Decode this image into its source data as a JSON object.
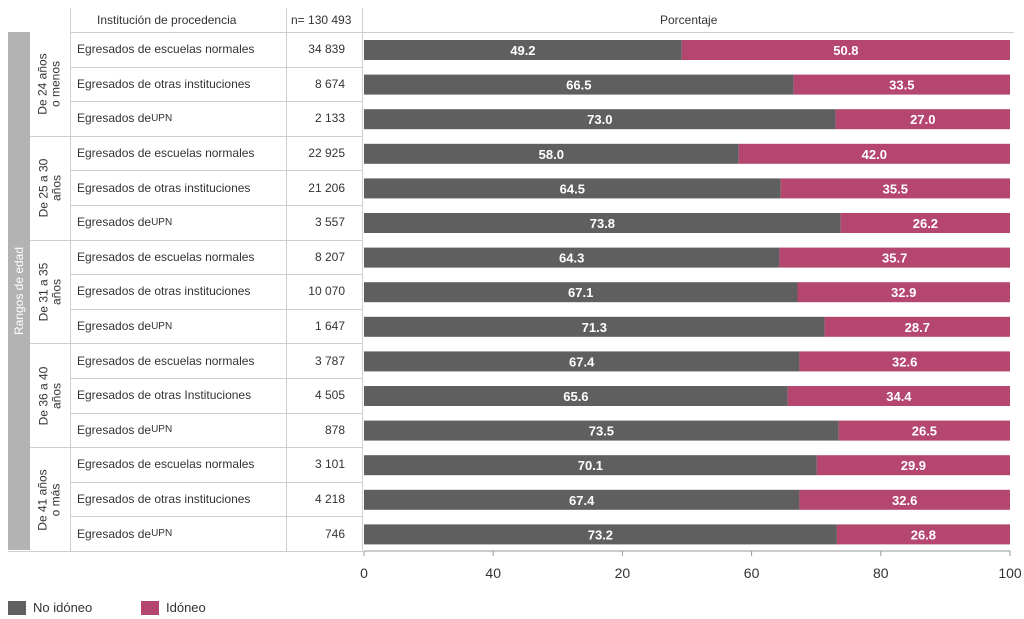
{
  "header": {
    "institution": "Institución de procedencia",
    "n_total": "n= 130 493",
    "percent": "Porcentaje"
  },
  "side_label": "Rangos de edad",
  "age_groups": [
    "De 24 años\no menos",
    "De 25 a 30\naños",
    "De 31 a 35\naños",
    "De 36 a 40\naños",
    "De 41 años\no más"
  ],
  "legend": [
    {
      "label": "No idóneo",
      "color": "#5f5f5f"
    },
    {
      "label": "Idóneo",
      "color": "#b5466f"
    }
  ],
  "chart_data": {
    "type": "bar",
    "orientation": "horizontal",
    "stacked": true,
    "xlim": [
      0,
      100
    ],
    "xticks": [
      "0",
      "40",
      "20",
      "60",
      "80",
      "100"
    ],
    "grid": false,
    "legend_position": "bottom-left",
    "rows": [
      {
        "group": "De 24 años o menos",
        "institution": "Egresados de escuelas normales",
        "n": "34 839"
      },
      {
        "group": "De 24 años o menos",
        "institution": "Egresados de otras instituciones",
        "n": "8 674"
      },
      {
        "group": "De 24 años o menos",
        "institution": "Egresados de UPN",
        "n": "2 133"
      },
      {
        "group": "De 25 a 30 años",
        "institution": "Egresados de escuelas normales",
        "n": "22 925"
      },
      {
        "group": "De 25 a 30 años",
        "institution": "Egresados de otras instituciones",
        "n": "21 206"
      },
      {
        "group": "De 25 a 30 años",
        "institution": "Egresados de UPN",
        "n": "3 557"
      },
      {
        "group": "De 31 a 35 años",
        "institution": "Egresados de escuelas normales",
        "n": "8 207"
      },
      {
        "group": "De 31 a 35 años",
        "institution": "Egresados de otras instituciones",
        "n": "10 070"
      },
      {
        "group": "De 31 a 35 años",
        "institution": "Egresados de UPN",
        "n": "1 647"
      },
      {
        "group": "De 36 a 40 años",
        "institution": "Egresados de escuelas normales",
        "n": "3 787"
      },
      {
        "group": "De 36 a 40 años",
        "institution": "Egresados de otras Instituciones",
        "n": "4 505"
      },
      {
        "group": "De 36 a 40 años",
        "institution": "Egresados de UPN",
        "n": "878"
      },
      {
        "group": "De 41 años o más",
        "institution": "Egresados de escuelas normales",
        "n": "3 101"
      },
      {
        "group": "De 41 años o más",
        "institution": "Egresados de otras instituciones",
        "n": "4 218"
      },
      {
        "group": "De 41 años o más",
        "institution": "Egresados de UPN",
        "n": "746"
      }
    ],
    "series": [
      {
        "name": "No idóneo",
        "color": "#5f5f5f",
        "values": [
          49.2,
          66.5,
          73.0,
          58.0,
          64.5,
          73.8,
          64.3,
          67.1,
          71.3,
          67.4,
          65.6,
          73.5,
          70.1,
          67.4,
          73.2
        ]
      },
      {
        "name": "Idóneo",
        "color": "#b5466f",
        "values": [
          50.8,
          33.5,
          27.0,
          42.0,
          35.5,
          26.2,
          35.7,
          32.9,
          28.7,
          32.6,
          34.4,
          26.5,
          29.9,
          32.6,
          26.8
        ]
      }
    ]
  }
}
